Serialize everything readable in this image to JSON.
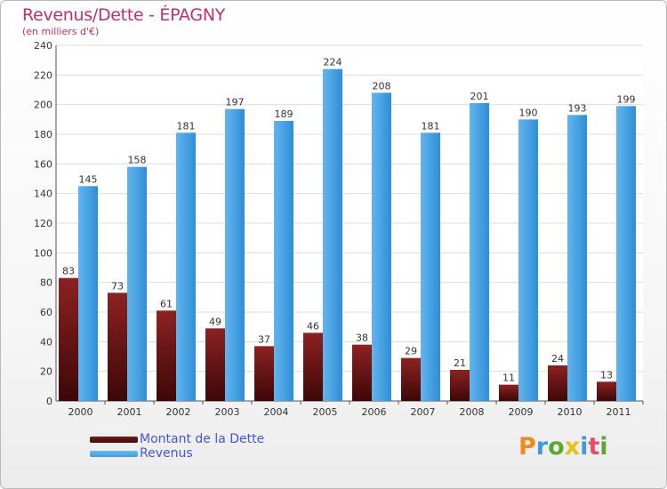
{
  "title": "Revenus/Dette - ÉPAGNY",
  "subtitle": "(en milliers d'€)",
  "logo_text": "Proxiti",
  "colors": {
    "dette": "#7a1a1a",
    "revenus": "#3d9ce0",
    "title": "#c0306a",
    "legend_text": "#4455dd"
  },
  "chart_data": {
    "type": "bar",
    "categories": [
      "2000",
      "2001",
      "2002",
      "2003",
      "2004",
      "2005",
      "2006",
      "2007",
      "2008",
      "2009",
      "2010",
      "2011"
    ],
    "series": [
      {
        "name": "Montant de la Dette",
        "values": [
          83,
          73,
          61,
          49,
          37,
          46,
          38,
          29,
          21,
          11,
          24,
          13
        ]
      },
      {
        "name": "Revenus",
        "values": [
          145,
          158,
          181,
          197,
          189,
          224,
          208,
          181,
          201,
          190,
          193,
          199
        ]
      }
    ],
    "ylim": [
      0,
      240
    ],
    "yticks": [
      0,
      20,
      40,
      60,
      80,
      100,
      120,
      140,
      160,
      180,
      200,
      220,
      240
    ],
    "grid": true,
    "legend_position": "bottom-left"
  }
}
